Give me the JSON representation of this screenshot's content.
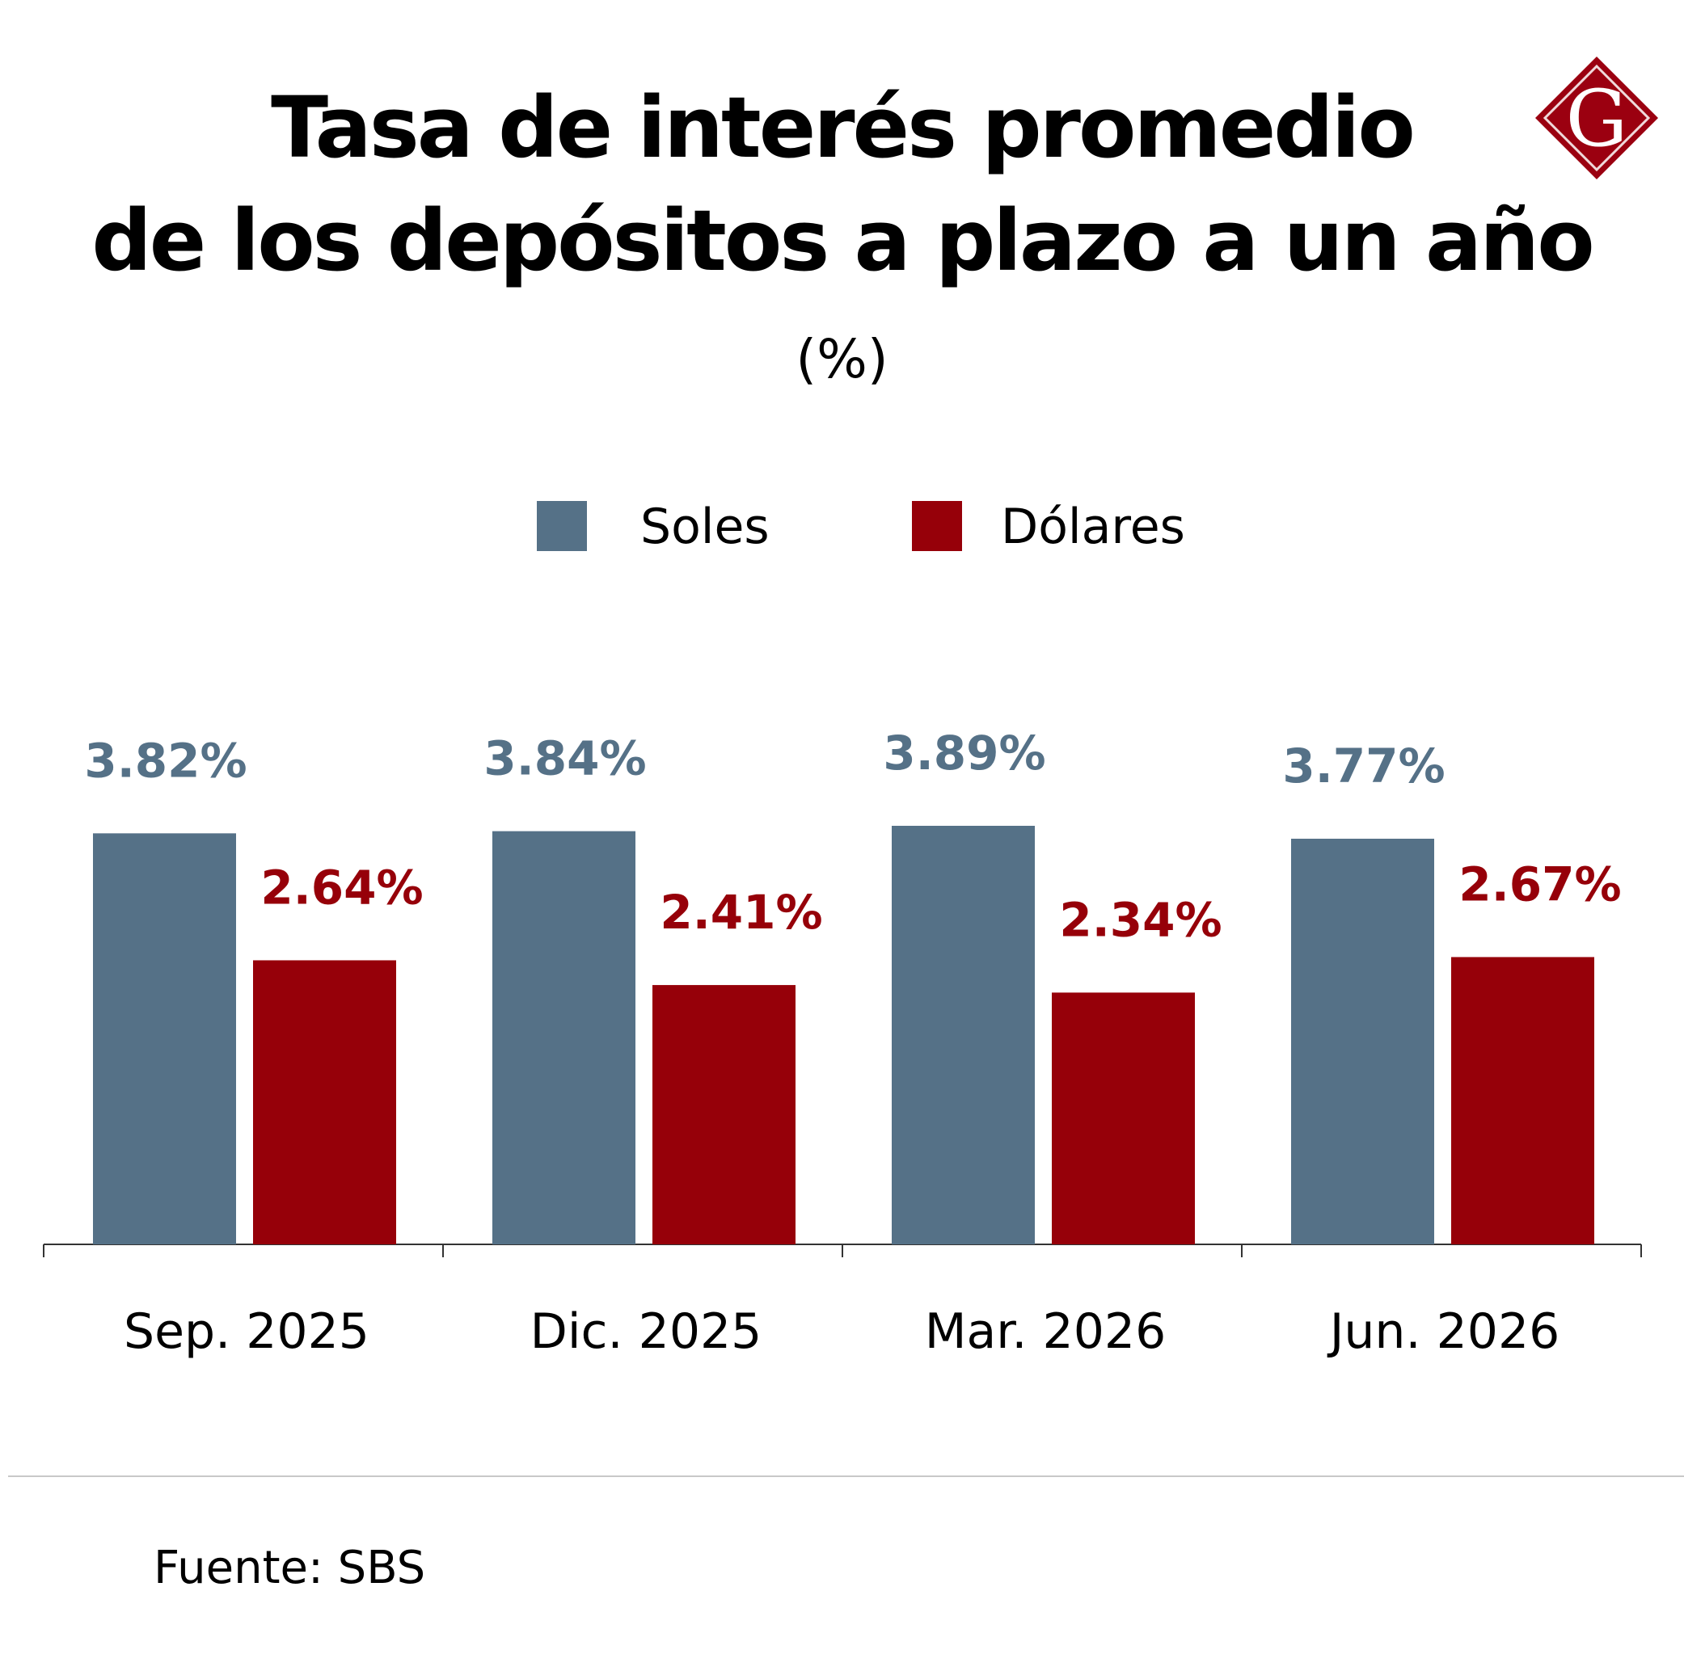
{
  "header": {
    "title_line1": "Tasa de interés promedio",
    "title_line2": "de los depósitos a plazo a un año",
    "subtitle": "(%)"
  },
  "logo": {
    "letter": "G",
    "icon": "g-diamond-logo-icon",
    "color": "#9b0010"
  },
  "legend": {
    "soles": "Soles",
    "dolares": "Dólares"
  },
  "colors": {
    "soles": "#557187",
    "dolares": "#960009",
    "axis": "#333333"
  },
  "chart_data": {
    "type": "bar",
    "categories": [
      "Sep. 2025",
      "Dic. 2025",
      "Mar. 2026",
      "Jun. 2026"
    ],
    "series": [
      {
        "name": "Soles",
        "values": [
          3.82,
          3.84,
          3.89,
          3.77
        ],
        "labels": [
          "3.82%",
          "3.84%",
          "3.89%",
          "3.77%"
        ]
      },
      {
        "name": "Dólares",
        "values": [
          2.64,
          2.41,
          2.34,
          2.67
        ],
        "labels": [
          "2.64%",
          "2.41%",
          "2.34%",
          "2.67%"
        ]
      }
    ],
    "title": "Tasa de interés promedio de los depósitos a plazo a un año",
    "subtitle": "(%)",
    "ylim": [
      0,
      3.89
    ],
    "grid": false,
    "legend_position": "top-center"
  },
  "footer": {
    "source": "Fuente: SBS"
  }
}
